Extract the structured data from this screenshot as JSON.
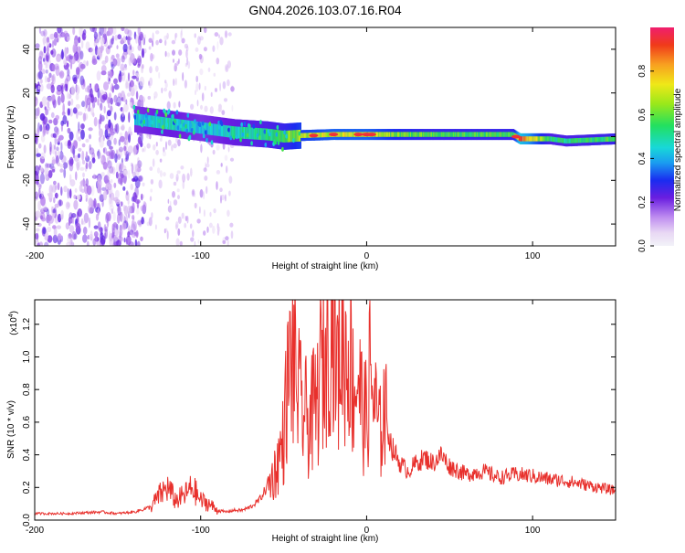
{
  "title": "GN04.2026.103.07.16.R04",
  "colors": {
    "axis": "#000000",
    "snr_line": "#e8302c",
    "background": "#ffffff",
    "ridge_core": "#e8303a",
    "ridge_mid": "#2ad86a",
    "scatter": "#6a1ee0"
  },
  "chart_data": [
    {
      "type": "heatmap",
      "title": "GN04.2026.103.07.16.R04",
      "xlabel": "Height of straight line (km)",
      "ylabel": "Frequency (Hz)",
      "xlim": [
        -200,
        150
      ],
      "ylim": [
        -50,
        50
      ],
      "x_ticks": [
        -200,
        -100,
        0,
        100
      ],
      "x_tick_labels": [
        "-200",
        "-100",
        "0",
        "100"
      ],
      "y_ticks": [
        -40,
        -20,
        0,
        20,
        40
      ],
      "y_tick_labels": [
        "-40",
        "-20",
        "0",
        "20",
        "40"
      ],
      "colorbar": {
        "label": "Normalized spectral amplitude",
        "range": [
          0,
          1
        ],
        "ticks": [
          0.0,
          0.2,
          0.4,
          0.6,
          0.8
        ],
        "tick_labels": [
          "0.0",
          "0.2",
          "0.4",
          "0.6",
          "0.8"
        ]
      },
      "ridge": {
        "description_free_values": true,
        "x": [
          -140,
          -120,
          -100,
          -80,
          -60,
          -50,
          -40,
          -20,
          0,
          20,
          40,
          60,
          88,
          92,
          110,
          120,
          150
        ],
        "freq": [
          8,
          6,
          4,
          2,
          1,
          0,
          0.5,
          1,
          1,
          1,
          1,
          1,
          1,
          -1,
          -1,
          -2,
          -1
        ],
        "amplitude": [
          0.45,
          0.5,
          0.45,
          0.5,
          0.55,
          0.6,
          0.7,
          0.75,
          0.75,
          0.65,
          0.6,
          0.6,
          0.6,
          0.95,
          0.55,
          0.55,
          0.6
        ]
      },
      "noise_region_km": [
        -200,
        -140
      ],
      "noise_amplitude": 0.15
    },
    {
      "type": "line",
      "xlabel": "Height of straight line (km)",
      "ylabel": "SNR (10 * v/v)",
      "y_scale_label": "(x10",
      "y_scale_exp": "4",
      "xlim": [
        -200,
        150
      ],
      "ylim": [
        0,
        1.35
      ],
      "x_ticks": [
        -200,
        -100,
        0,
        100
      ],
      "x_tick_labels": [
        "-200",
        "-100",
        "0",
        "100"
      ],
      "y_ticks": [
        0.0,
        0.2,
        0.4,
        0.6,
        0.8,
        1.0,
        1.2
      ],
      "y_tick_labels": [
        "0.0",
        "0.2",
        "0.4",
        "0.6",
        "0.8",
        "1.0",
        "1.2"
      ],
      "series": [
        {
          "name": "SNR",
          "x": [
            -200,
            -180,
            -160,
            -150,
            -140,
            -130,
            -125,
            -120,
            -115,
            -110,
            -105,
            -100,
            -95,
            -90,
            -85,
            -80,
            -75,
            -70,
            -65,
            -60,
            -55,
            -50,
            -48,
            -45,
            -42,
            -40,
            -35,
            -30,
            -28,
            -25,
            -23,
            -20,
            -18,
            -15,
            -12,
            -10,
            -8,
            -5,
            -3,
            0,
            2,
            5,
            8,
            10,
            15,
            20,
            25,
            30,
            35,
            40,
            45,
            50,
            60,
            70,
            80,
            90,
            100,
            110,
            120,
            130,
            140,
            150
          ],
          "y": [
            0.04,
            0.04,
            0.05,
            0.04,
            0.05,
            0.08,
            0.15,
            0.2,
            0.12,
            0.15,
            0.2,
            0.12,
            0.1,
            0.06,
            0.05,
            0.06,
            0.06,
            0.08,
            0.12,
            0.2,
            0.3,
            0.5,
            0.8,
            1.0,
            0.85,
            0.7,
            0.6,
            0.7,
            0.9,
            1.0,
            1.2,
            1.35,
            0.9,
            1.1,
            1.0,
            1.05,
            0.8,
            0.9,
            0.7,
            0.6,
            0.9,
            0.7,
            0.5,
            0.7,
            0.45,
            0.35,
            0.3,
            0.35,
            0.38,
            0.35,
            0.4,
            0.33,
            0.28,
            0.3,
            0.26,
            0.28,
            0.27,
            0.25,
            0.24,
            0.22,
            0.2,
            0.18
          ]
        }
      ]
    }
  ]
}
